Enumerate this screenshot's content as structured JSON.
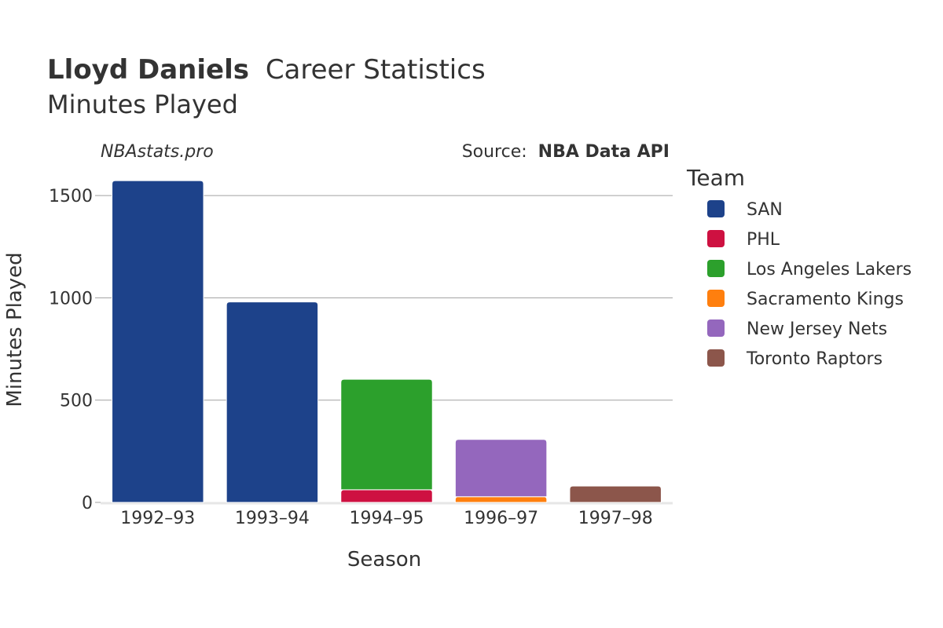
{
  "title": {
    "bold": "Lloyd Daniels",
    "rest": "Career Statistics"
  },
  "subtitle": "Minutes Played",
  "watermark": "NBAstats.pro",
  "source": {
    "prefix": "Source: ",
    "name": "NBA Data API"
  },
  "legend_title": "Team",
  "chart_data": {
    "type": "bar",
    "stacked": true,
    "xlabel": "Season",
    "ylabel": "Minutes Played",
    "categories": [
      "1992–93",
      "1993–94",
      "1994–95",
      "1996–97",
      "1997–98"
    ],
    "ylim": [
      0,
      1650
    ],
    "yticks": [
      0,
      500,
      1000,
      1500
    ],
    "grid": true,
    "legend_position": "right",
    "series": [
      {
        "name": "SAN",
        "color": "#1d428a",
        "values": [
          1573,
          980,
          0,
          0,
          0
        ]
      },
      {
        "name": "PHL",
        "color": "#ce1141",
        "values": [
          0,
          0,
          62,
          0,
          0
        ]
      },
      {
        "name": "Los Angeles Lakers",
        "color": "#2ca02c",
        "values": [
          0,
          0,
          540,
          0,
          0
        ]
      },
      {
        "name": "Sacramento Kings",
        "color": "#ff7f0e",
        "values": [
          0,
          0,
          0,
          28,
          0
        ]
      },
      {
        "name": "New Jersey Nets",
        "color": "#9467bd",
        "values": [
          0,
          0,
          0,
          280,
          0
        ]
      },
      {
        "name": "Toronto Raptors",
        "color": "#8c564b",
        "values": [
          0,
          0,
          0,
          0,
          80
        ]
      }
    ]
  }
}
